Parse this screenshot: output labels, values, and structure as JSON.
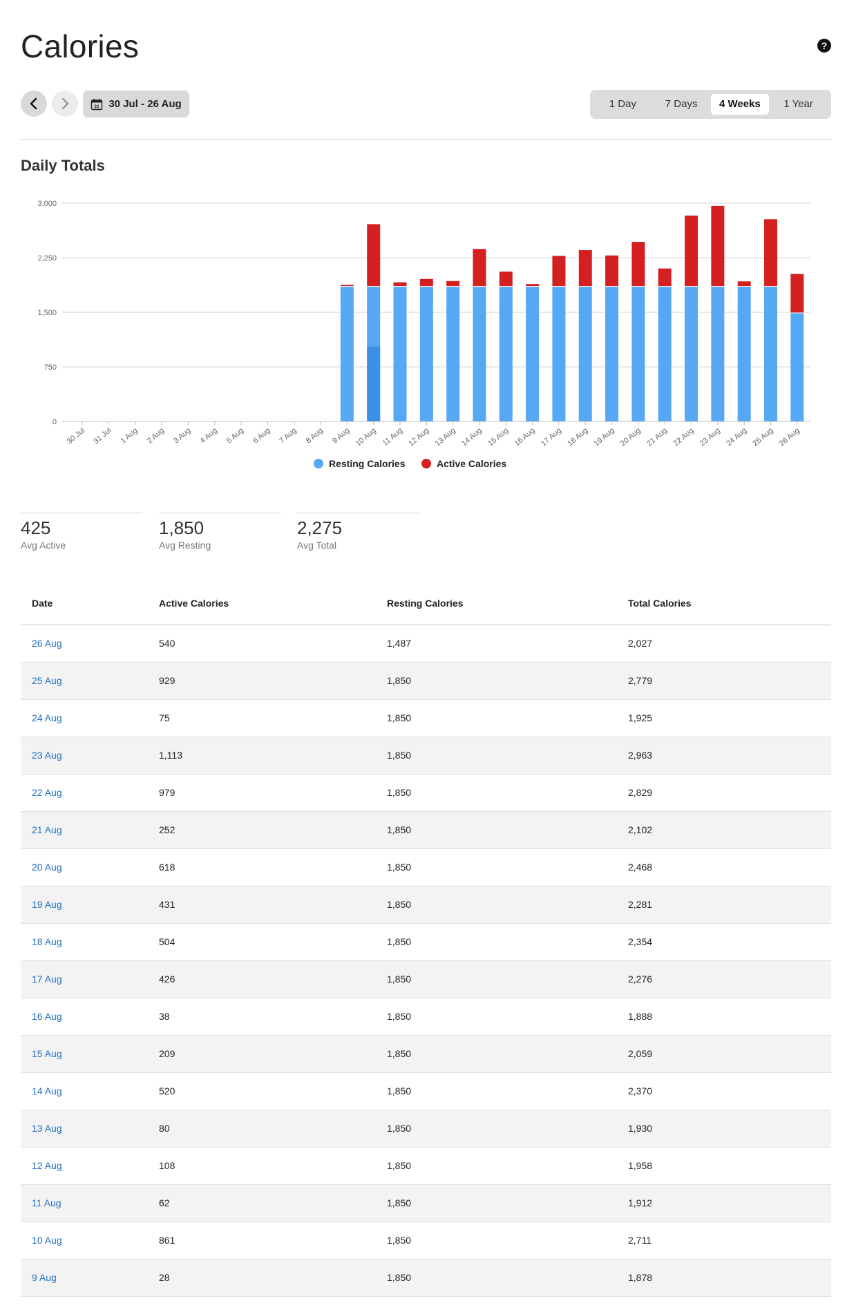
{
  "header": {
    "title": "Calories",
    "help_icon": "question-circle-icon"
  },
  "controls": {
    "prev_icon": "chevron-left-icon",
    "next_icon": "chevron-right-icon",
    "calendar_icon": "calendar-icon",
    "calendar_day": "31",
    "date_range": "30 Jul - 26 Aug",
    "range_options": [
      "1 Day",
      "7 Days",
      "4 Weeks",
      "1 Year"
    ],
    "range_selected": "4 Weeks"
  },
  "section": {
    "title": "Daily Totals"
  },
  "colors": {
    "resting": "#56a8f5",
    "resting_highlight": "#3a91e6",
    "active": "#d42020"
  },
  "chart_data": {
    "type": "bar",
    "stacked": true,
    "categories": [
      "30 Jul",
      "31 Jul",
      "1 Aug",
      "2 Aug",
      "3 Aug",
      "4 Aug",
      "5 Aug",
      "6 Aug",
      "7 Aug",
      "8 Aug",
      "9 Aug",
      "10 Aug",
      "11 Aug",
      "12 Aug",
      "13 Aug",
      "14 Aug",
      "15 Aug",
      "16 Aug",
      "17 Aug",
      "18 Aug",
      "19 Aug",
      "20 Aug",
      "21 Aug",
      "22 Aug",
      "23 Aug",
      "24 Aug",
      "25 Aug",
      "26 Aug"
    ],
    "series": [
      {
        "name": "Resting Calories",
        "values": [
          0,
          0,
          0,
          0,
          0,
          0,
          0,
          0,
          0,
          0,
          1850,
          1850,
          1850,
          1850,
          1850,
          1850,
          1850,
          1850,
          1850,
          1850,
          1850,
          1850,
          1850,
          1850,
          1850,
          1850,
          1850,
          1487
        ]
      },
      {
        "name": "Active Calories",
        "values": [
          0,
          0,
          0,
          0,
          0,
          0,
          0,
          0,
          0,
          0,
          28,
          861,
          62,
          108,
          80,
          520,
          209,
          38,
          426,
          504,
          431,
          618,
          252,
          979,
          1113,
          75,
          929,
          540
        ]
      }
    ],
    "highlighted_category": "10 Aug",
    "highlight_segment_value": 1030,
    "ylim": [
      0,
      3000
    ],
    "yticks": [
      0,
      750,
      1500,
      2250,
      3000
    ],
    "ytick_labels": [
      "0",
      "750",
      "1,500",
      "2,250",
      "3,000"
    ],
    "grid": true,
    "legend_position": "bottom-center"
  },
  "stats": [
    {
      "value": "425",
      "label": "Avg Active"
    },
    {
      "value": "1,850",
      "label": "Avg Resting"
    },
    {
      "value": "2,275",
      "label": "Avg Total"
    }
  ],
  "table": {
    "headers": [
      "Date",
      "Active Calories",
      "Resting Calories",
      "Total Calories"
    ],
    "rows": [
      [
        "26 Aug",
        "540",
        "1,487",
        "2,027"
      ],
      [
        "25 Aug",
        "929",
        "1,850",
        "2,779"
      ],
      [
        "24 Aug",
        "75",
        "1,850",
        "1,925"
      ],
      [
        "23 Aug",
        "1,113",
        "1,850",
        "2,963"
      ],
      [
        "22 Aug",
        "979",
        "1,850",
        "2,829"
      ],
      [
        "21 Aug",
        "252",
        "1,850",
        "2,102"
      ],
      [
        "20 Aug",
        "618",
        "1,850",
        "2,468"
      ],
      [
        "19 Aug",
        "431",
        "1,850",
        "2,281"
      ],
      [
        "18 Aug",
        "504",
        "1,850",
        "2,354"
      ],
      [
        "17 Aug",
        "426",
        "1,850",
        "2,276"
      ],
      [
        "16 Aug",
        "38",
        "1,850",
        "1,888"
      ],
      [
        "15 Aug",
        "209",
        "1,850",
        "2,059"
      ],
      [
        "14 Aug",
        "520",
        "1,850",
        "2,370"
      ],
      [
        "13 Aug",
        "80",
        "1,850",
        "1,930"
      ],
      [
        "12 Aug",
        "108",
        "1,850",
        "1,958"
      ],
      [
        "11 Aug",
        "62",
        "1,850",
        "1,912"
      ],
      [
        "10 Aug",
        "861",
        "1,850",
        "2,711"
      ],
      [
        "9 Aug",
        "28",
        "1,850",
        "1,878"
      ]
    ]
  }
}
